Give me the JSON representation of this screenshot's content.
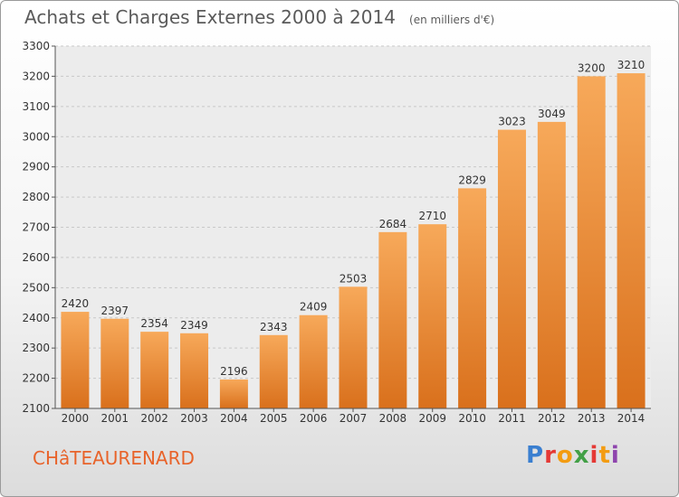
{
  "header": {
    "title": "Achats et Charges Externes 2000 à 2014",
    "subtitle": "(en milliers d'€)"
  },
  "footer": {
    "commune": "CHâTEAURENARD",
    "logo_text": "Proxiti",
    "logo_colors": [
      "#3a7fd0",
      "#e53935",
      "#f39c12",
      "#43a047",
      "#e53935",
      "#f39c12",
      "#8e44ad"
    ]
  },
  "chart_data": {
    "type": "bar",
    "categories": [
      "2000",
      "2001",
      "2002",
      "2003",
      "2004",
      "2005",
      "2006",
      "2007",
      "2008",
      "2009",
      "2010",
      "2011",
      "2012",
      "2013",
      "2014"
    ],
    "values": [
      2420,
      2397,
      2354,
      2349,
      2196,
      2343,
      2409,
      2503,
      2684,
      2710,
      2829,
      3023,
      3049,
      3200,
      3210
    ],
    "title": "Achats et Charges Externes 2000 à 2014",
    "subtitle": "(en milliers d'€)",
    "ylim": [
      2100,
      3300
    ],
    "yticks": [
      2100,
      2200,
      2300,
      2400,
      2500,
      2600,
      2700,
      2800,
      2900,
      3000,
      3100,
      3200,
      3300
    ],
    "grid": true,
    "bar_color": "#f08a2c"
  }
}
